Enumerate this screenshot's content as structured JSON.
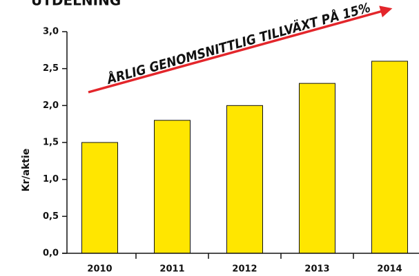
{
  "chart_data": {
    "type": "bar",
    "title": "UTDELNING",
    "y_label": "Kr/aktie",
    "annotation": "ÅRLIG GENOMSNITTLIG TILLVÄXT PÅ 15%",
    "categories": [
      "2010",
      "2011",
      "2012",
      "2013",
      "2014"
    ],
    "values": [
      1.5,
      1.8,
      2.0,
      2.3,
      2.6
    ],
    "color": "#ffe600",
    "ylim": [
      0,
      3
    ],
    "yticks": [
      {
        "value": 0,
        "label": "0,0"
      },
      {
        "value": 0.5,
        "label": "0,5"
      },
      {
        "value": 1,
        "label": "1,0"
      },
      {
        "value": 1.5,
        "label": "1,5"
      },
      {
        "value": 2,
        "label": "2,0"
      },
      {
        "value": 2.5,
        "label": "2,5"
      },
      {
        "value": 3,
        "label": "3,0"
      }
    ]
  }
}
